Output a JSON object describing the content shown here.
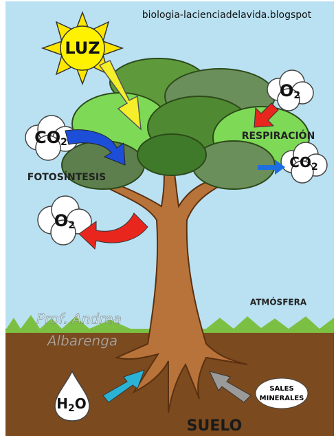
{
  "source": "biologia-lacienciadelavida.blogspot",
  "light": "LUZ",
  "labels": {
    "respiration": "RESPIRACIÓN",
    "photosynthesis": "FOTOSÍNTESIS",
    "atmosphere": "ATMÓSFERA",
    "soil": "SUELO"
  },
  "bubbles": [
    {
      "base": "O",
      "sub": "2"
    },
    {
      "base": "CO",
      "sub": "2"
    },
    {
      "base": "CO",
      "sub": "2"
    },
    {
      "base": "O",
      "sub": "2"
    },
    {
      "base": "H",
      "sub": "2",
      "tail": "O"
    }
  ],
  "minerals": [
    "SALES",
    "MINERALES"
  ],
  "watermark": [
    "Prof. Andrea",
    "Albarenga"
  ]
}
